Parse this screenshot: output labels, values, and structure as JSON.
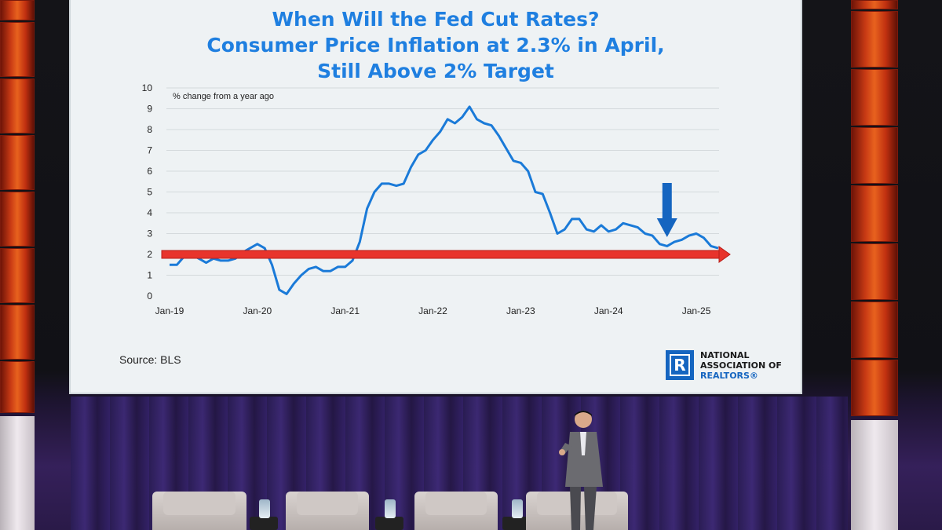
{
  "slide": {
    "title_lines": [
      "When Will the Fed Cut Rates?",
      "Consumer Price Inflation at 2.3% in April,",
      "Still Above 2% Target"
    ],
    "source": "Source: BLS",
    "logo": {
      "mark": "R",
      "lines": [
        "NATIONAL",
        "ASSOCIATION OF",
        "REALTORS®"
      ]
    },
    "colors": {
      "title": "#1f7fe0",
      "line": "#1a7ad8",
      "target_arrow": "#e8342c",
      "marker_arrow": "#1565c0"
    }
  },
  "chart_data": {
    "type": "line",
    "ylabel": "% change from a year ago",
    "xlabel": "",
    "ylim": [
      0,
      10
    ],
    "yticks": [
      0,
      1,
      2,
      3,
      4,
      5,
      6,
      7,
      8,
      9,
      10
    ],
    "xticks": [
      "Jan-19",
      "Jan-20",
      "Jan-21",
      "Jan-22",
      "Jan-23",
      "Jan-24",
      "Jan-25"
    ],
    "grid": "horizontal",
    "x_start": "Jan-19",
    "x_step": "month",
    "series": [
      {
        "values": [
          1.5,
          1.5,
          1.9,
          2.0,
          1.8,
          1.6,
          1.8,
          1.7,
          1.7,
          1.8,
          2.1,
          2.3,
          2.5,
          2.3,
          1.5,
          0.3,
          0.1,
          0.6,
          1.0,
          1.3,
          1.4,
          1.2,
          1.2,
          1.4,
          1.4,
          1.7,
          2.6,
          4.2,
          5.0,
          5.4,
          5.4,
          5.3,
          5.4,
          6.2,
          6.8,
          7.0,
          7.5,
          7.9,
          8.5,
          8.3,
          8.6,
          9.1,
          8.5,
          8.3,
          8.2,
          7.7,
          7.1,
          6.5,
          6.4,
          6.0,
          5.0,
          4.9,
          4.0,
          3.0,
          3.2,
          3.7,
          3.7,
          3.2,
          3.1,
          3.4,
          3.1,
          3.2,
          3.5,
          3.4,
          3.3,
          3.0,
          2.9,
          2.5,
          2.4,
          2.6,
          2.7,
          2.9,
          3.0,
          2.8,
          2.4,
          2.3
        ]
      }
    ],
    "annotations": [
      {
        "type": "horizontal-arrow",
        "y": 2.0,
        "label": ""
      },
      {
        "type": "down-arrow",
        "x_index": 68,
        "label": ""
      }
    ]
  }
}
